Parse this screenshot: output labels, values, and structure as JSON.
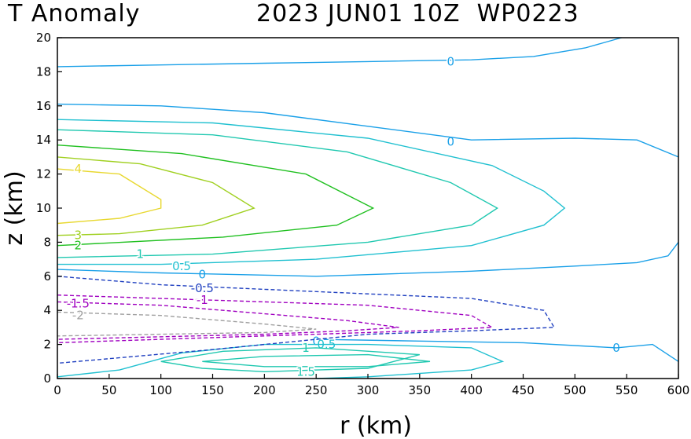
{
  "chart_data": {
    "type": "contour",
    "title_left": "T Anomaly",
    "title_right": "2023 JUN01 10Z  WP0223",
    "xlabel": "r (km)",
    "ylabel": "z (km)",
    "xlim": [
      0,
      600
    ],
    "ylim": [
      0,
      20
    ],
    "xticks": [
      "0",
      "50",
      "100",
      "150",
      "200",
      "250",
      "300",
      "350",
      "400",
      "450",
      "500",
      "550",
      "600"
    ],
    "yticks": [
      "0",
      "2",
      "4",
      "6",
      "8",
      "10",
      "12",
      "14",
      "16",
      "18",
      "20"
    ],
    "contours": [
      {
        "level": "0",
        "color": "#1aa0e8",
        "dashed": false,
        "label_at": [
          [
            380,
            18.6
          ],
          [
            380,
            13.9
          ],
          [
            140,
            6.1
          ],
          [
            250,
            2.2
          ],
          [
            540,
            1.8
          ]
        ],
        "points": [
          [
            0,
            18.3
          ],
          [
            100,
            18.4
          ],
          [
            200,
            18.5
          ],
          [
            300,
            18.6
          ],
          [
            400,
            18.7
          ],
          [
            460,
            18.9
          ],
          [
            510,
            19.4
          ],
          [
            545,
            20.0
          ]
        ]
      },
      {
        "level": "0",
        "color": "#1aa0e8",
        "dashed": false,
        "points": [
          [
            0,
            16.1
          ],
          [
            100,
            16.0
          ],
          [
            200,
            15.6
          ],
          [
            300,
            14.8
          ],
          [
            400,
            14.0
          ],
          [
            500,
            14.1
          ],
          [
            560,
            14.0
          ],
          [
            600,
            13.0
          ]
        ]
      },
      {
        "level": "0",
        "color": "#1aa0e8",
        "dashed": false,
        "points": [
          [
            0,
            6.4
          ],
          [
            100,
            6.2
          ],
          [
            250,
            6.0
          ],
          [
            400,
            6.3
          ],
          [
            500,
            6.6
          ],
          [
            560,
            6.8
          ],
          [
            590,
            7.2
          ],
          [
            600,
            8.0
          ]
        ]
      },
      {
        "level": "0",
        "color": "#1aa0e8",
        "dashed": false,
        "points": [
          [
            250,
            2.3
          ],
          [
            350,
            2.2
          ],
          [
            450,
            2.1
          ],
          [
            540,
            1.8
          ],
          [
            575,
            2.0
          ],
          [
            600,
            1.0
          ]
        ]
      },
      {
        "level": "0.5",
        "color": "#20c0d0",
        "dashed": false,
        "label_at": [
          [
            120,
            6.6
          ],
          [
            260,
            2.0
          ]
        ],
        "points": [
          [
            0,
            15.2
          ],
          [
            150,
            15.0
          ],
          [
            300,
            14.1
          ],
          [
            420,
            12.5
          ],
          [
            470,
            11.0
          ],
          [
            490,
            10.0
          ],
          [
            470,
            9.0
          ],
          [
            400,
            7.8
          ],
          [
            250,
            7.0
          ],
          [
            100,
            6.7
          ],
          [
            0,
            6.7
          ]
        ]
      },
      {
        "level": "0.5",
        "color": "#20c0d0",
        "dashed": false,
        "points": [
          [
            0,
            0.1
          ],
          [
            60,
            0.5
          ],
          [
            120,
            1.5
          ],
          [
            200,
            2.0
          ],
          [
            300,
            2.0
          ],
          [
            400,
            1.8
          ],
          [
            430,
            1.0
          ],
          [
            400,
            0.5
          ],
          [
            300,
            0.1
          ],
          [
            250,
            0
          ]
        ]
      },
      {
        "level": "1",
        "color": "#20c8b0",
        "dashed": false,
        "label_at": [
          [
            80,
            7.3
          ],
          [
            240,
            1.8
          ]
        ],
        "points": [
          [
            0,
            14.6
          ],
          [
            150,
            14.3
          ],
          [
            280,
            13.3
          ],
          [
            380,
            11.5
          ],
          [
            425,
            10.0
          ],
          [
            400,
            9.0
          ],
          [
            300,
            8.0
          ],
          [
            150,
            7.3
          ],
          [
            0,
            7.1
          ]
        ]
      },
      {
        "level": "1",
        "color": "#20c8b0",
        "dashed": false,
        "points": [
          [
            100,
            1.0
          ],
          [
            160,
            1.6
          ],
          [
            250,
            1.8
          ],
          [
            350,
            1.4
          ],
          [
            300,
            0.6
          ],
          [
            200,
            0.4
          ],
          [
            140,
            0.6
          ],
          [
            100,
            1.0
          ]
        ]
      },
      {
        "level": "1.5",
        "color": "#20c8b0",
        "dashed": false,
        "label_at": [
          [
            240,
            0.4
          ]
        ],
        "points": [
          [
            140,
            1.0
          ],
          [
            200,
            1.3
          ],
          [
            300,
            1.4
          ],
          [
            360,
            1.0
          ],
          [
            300,
            0.7
          ],
          [
            200,
            0.7
          ],
          [
            140,
            1.0
          ]
        ]
      },
      {
        "level": "2",
        "color": "#20c020",
        "dashed": false,
        "label_at": [
          [
            20,
            7.8
          ]
        ],
        "points": [
          [
            0,
            13.7
          ],
          [
            120,
            13.2
          ],
          [
            240,
            12.0
          ],
          [
            305,
            10.0
          ],
          [
            270,
            9.0
          ],
          [
            160,
            8.3
          ],
          [
            0,
            7.8
          ]
        ]
      },
      {
        "level": "3",
        "color": "#a0d020",
        "dashed": false,
        "label_at": [
          [
            20,
            8.4
          ]
        ],
        "points": [
          [
            0,
            13.0
          ],
          [
            80,
            12.6
          ],
          [
            150,
            11.5
          ],
          [
            190,
            10.0
          ],
          [
            140,
            9.0
          ],
          [
            60,
            8.5
          ],
          [
            0,
            8.4
          ]
        ]
      },
      {
        "level": "4",
        "color": "#e8d830",
        "dashed": false,
        "label_at": [
          [
            20,
            12.3
          ]
        ],
        "points": [
          [
            0,
            12.3
          ],
          [
            60,
            12.0
          ],
          [
            100,
            10.5
          ],
          [
            100,
            10.0
          ],
          [
            60,
            9.4
          ],
          [
            0,
            9.1
          ]
        ]
      },
      {
        "level": "-0.5",
        "color": "#2040c0",
        "dashed": true,
        "label_at": [
          [
            140,
            5.3
          ]
        ],
        "points": [
          [
            0,
            6.0
          ],
          [
            100,
            5.5
          ],
          [
            250,
            5.1
          ],
          [
            400,
            4.7
          ],
          [
            470,
            4.0
          ],
          [
            480,
            3.0
          ],
          [
            400,
            2.8
          ],
          [
            300,
            2.6
          ],
          [
            150,
            1.7
          ],
          [
            0,
            0.9
          ]
        ]
      },
      {
        "level": "-1",
        "color": "#a000c0",
        "dashed": true,
        "label_at": [
          [
            140,
            4.6
          ]
        ],
        "points": [
          [
            0,
            4.9
          ],
          [
            150,
            4.6
          ],
          [
            300,
            4.3
          ],
          [
            400,
            3.7
          ],
          [
            420,
            3.0
          ],
          [
            350,
            2.8
          ],
          [
            250,
            2.6
          ],
          [
            150,
            2.4
          ],
          [
            0,
            2.1
          ]
        ]
      },
      {
        "level": "-1.5",
        "color": "#a000c0",
        "dashed": true,
        "label_at": [
          [
            20,
            4.4
          ]
        ],
        "points": [
          [
            0,
            4.5
          ],
          [
            100,
            4.3
          ],
          [
            200,
            3.8
          ],
          [
            280,
            3.4
          ],
          [
            330,
            3.0
          ],
          [
            280,
            2.8
          ],
          [
            200,
            2.6
          ],
          [
            0,
            2.3
          ]
        ]
      },
      {
        "level": "-2",
        "color": "#a0a0a0",
        "dashed": true,
        "label_at": [
          [
            20,
            3.7
          ]
        ],
        "points": [
          [
            0,
            3.9
          ],
          [
            100,
            3.7
          ],
          [
            200,
            3.2
          ],
          [
            250,
            2.9
          ],
          [
            200,
            2.7
          ],
          [
            0,
            2.5
          ]
        ]
      }
    ]
  }
}
